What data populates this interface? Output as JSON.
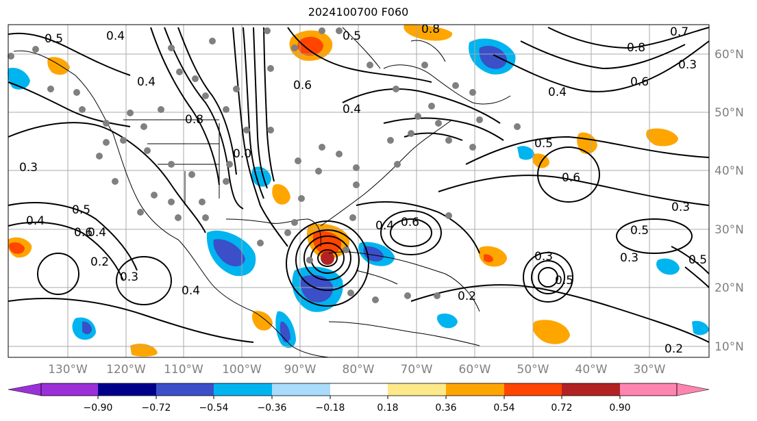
{
  "title": "2024100700 F060",
  "chart_data": {
    "type": "map",
    "title": "2024100700 F060",
    "lat_labels": [
      "60°N",
      "50°N",
      "40°N",
      "30°N",
      "20°N",
      "10°N"
    ],
    "lon_labels": [
      "130°W",
      "120°W",
      "110°W",
      "100°W",
      "90°W",
      "80°W",
      "70°W",
      "60°W",
      "50°W",
      "40°W",
      "30°W"
    ],
    "colorbar": {
      "ticks": [
        "−0.90",
        "−0.72",
        "−0.54",
        "−0.36",
        "−0.18",
        "0.18",
        "0.36",
        "0.54",
        "0.72",
        "0.90"
      ],
      "colors": [
        "#9b30d9",
        "#00008b",
        "#3a4fc8",
        "#00b4f0",
        "#a8dcfa",
        "#ffffff",
        "#fde88a",
        "#ffa500",
        "#ff4500",
        "#b22222",
        "#ff85b0"
      ],
      "extend": "both"
    },
    "contour_labels": [
      "0.5",
      "0.4",
      "0.4",
      "0.8",
      "0.6",
      "0.5",
      "0.4",
      "0.8",
      "0.7",
      "0.8",
      "0.6",
      "0.3",
      "0.4",
      "0.5",
      "0.0",
      "0.3",
      "0.4",
      "0.5",
      "0.6",
      "0.4",
      "0.2",
      "0.3",
      "0.4",
      "0.6",
      "0.4",
      "0.5",
      "0.2",
      "0.3",
      "0.5",
      "0.3",
      "0.3",
      "0.5",
      "0.6",
      "0.2"
    ],
    "colors": {
      "blue": "#00b4f0",
      "dark_blue": "#3a4fc8",
      "orange": "#ffa500",
      "red": "#ff4500",
      "dark_red": "#b22222",
      "gray": "#808080"
    }
  }
}
